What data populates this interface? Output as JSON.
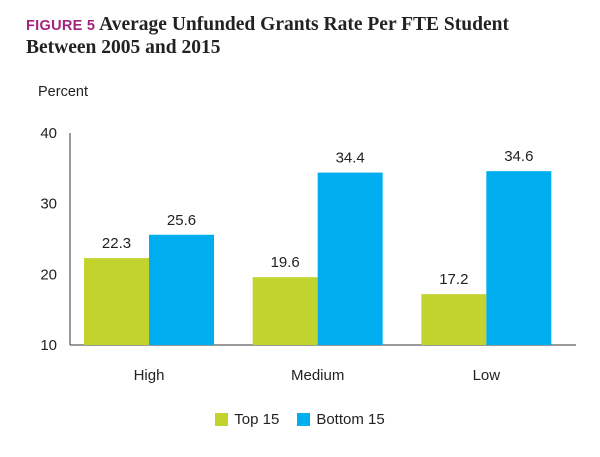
{
  "figure_label": "FIGURE 5",
  "title_line1": "Average Unfunded Grants Rate Per FTE Student",
  "title_line2": "Between 2005 and 2015",
  "colors": {
    "figure_label": "#a3247a",
    "top15": "#c2d32e",
    "bottom15": "#00aeef",
    "axis": "#333333"
  },
  "chart_data": {
    "type": "bar",
    "ylabel": "Percent",
    "ylim": [
      10,
      40
    ],
    "yticks": [
      "10",
      "20",
      "30",
      "40"
    ],
    "categories": [
      "High",
      "Medium",
      "Low"
    ],
    "series": [
      {
        "name": "Top 15",
        "values": [
          22.3,
          19.6,
          17.2
        ],
        "labels": [
          "22.3",
          "19.6",
          "17.2"
        ]
      },
      {
        "name": "Bottom 15",
        "values": [
          25.6,
          34.4,
          34.6
        ],
        "labels": [
          "25.6",
          "34.4",
          "34.6"
        ]
      }
    ],
    "legend_position": "bottom",
    "grid": false
  }
}
